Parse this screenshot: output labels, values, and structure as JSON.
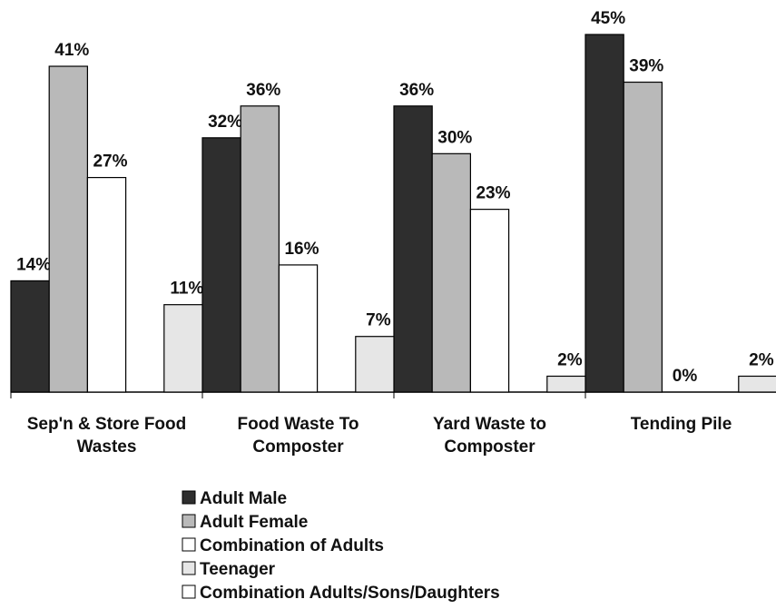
{
  "chart_data": {
    "type": "bar",
    "categories": [
      "Sep'n & Store Food Wastes",
      "Food Waste To Composter",
      "Yard Waste to Composter",
      "Tending Pile"
    ],
    "series": [
      {
        "name": "Adult Male",
        "color": "#2e2e2e",
        "values": [
          14,
          32,
          36,
          45
        ],
        "value_labels": [
          "14%",
          "32%",
          "36%",
          "45%"
        ]
      },
      {
        "name": "Adult Female",
        "color": "#b9b9b9",
        "values": [
          41,
          36,
          30,
          39
        ],
        "value_labels": [
          "41%",
          "36%",
          "30%",
          "39%"
        ]
      },
      {
        "name": "Combination of Adults",
        "color": "#ffffff",
        "values": [
          27,
          16,
          23,
          0
        ],
        "value_labels": [
          "27%",
          "16%",
          "23%",
          "0%"
        ]
      },
      {
        "name": "Teenager",
        "color": "#e6e6e6",
        "values": [
          11,
          7,
          2,
          2
        ],
        "value_labels": [
          "11%",
          "7%",
          "2%",
          "2%"
        ]
      },
      {
        "name": "Combination Adults/Sons/Daughters",
        "color": "#ffffff",
        "values": [
          null,
          null,
          null,
          null
        ]
      }
    ]
  }
}
